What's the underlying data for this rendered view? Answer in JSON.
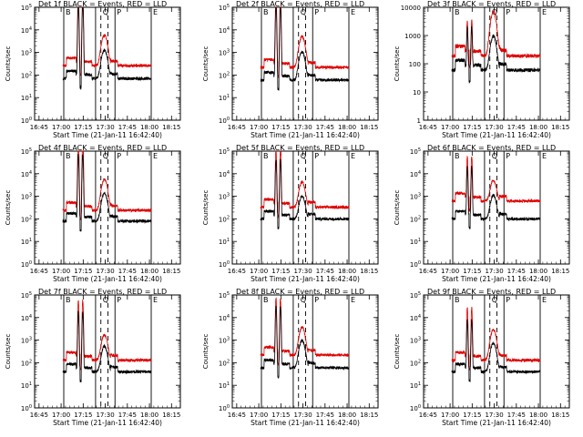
{
  "figure": {
    "x_tick_labels": [
      "16:45",
      "17:00",
      "17:15",
      "17:30",
      "17:45",
      "18:00",
      "18:15"
    ],
    "xlabel": "Start Time (21-Jan-11 16:42:40)",
    "ylabel": "Counts/sec",
    "region_labels": [
      "B",
      "Q",
      "P",
      "E"
    ],
    "colors": {
      "events": "#000000",
      "lld": "#e00000"
    }
  },
  "chart_data": [
    {
      "type": "line",
      "title": "Det 1f BLACK = Events, RED = LLD",
      "ylabel": "Counts/sec",
      "xlabel": "Start Time (21-Jan-11 16:42:40)",
      "yscale": "log",
      "ylim": [
        1,
        100000
      ],
      "y_tick_labels": [
        "10^0",
        "10^1",
        "10^2",
        "10^3",
        "10^4",
        "10^5"
      ],
      "x": [
        16.75,
        17.0,
        17.25,
        17.5,
        17.75,
        18.0,
        18.25
      ],
      "x_tick_labels": [
        "16:45",
        "17:00",
        "17:15",
        "17:30",
        "17:45",
        "18:00",
        "18:15"
      ],
      "vlines_solid": [
        17.03,
        17.39,
        17.61,
        18.02
      ],
      "vlines_dashed": [
        17.45,
        17.53
      ],
      "series": [
        {
          "name": "BLACK = Events",
          "color": "#000000",
          "base": 70,
          "pk1": 130000,
          "pk2": 130000,
          "pk3": 1200
        },
        {
          "name": "RED = LLD",
          "color": "#e00000",
          "base": 260,
          "pk1": 260000,
          "pk2": 260000,
          "pk3": 5500
        }
      ]
    },
    {
      "type": "line",
      "title": "Det 2f BLACK = Events, RED = LLD",
      "ylabel": "Counts/sec",
      "xlabel": "Start Time (21-Jan-11 16:42:40)",
      "yscale": "log",
      "ylim": [
        1,
        100000
      ],
      "y_tick_labels": [
        "10^0",
        "10^1",
        "10^2",
        "10^3",
        "10^4",
        "10^5"
      ],
      "x": [
        16.75,
        17.0,
        17.25,
        17.5,
        17.75,
        18.0,
        18.25
      ],
      "x_tick_labels": [
        "16:45",
        "17:00",
        "17:15",
        "17:30",
        "17:45",
        "18:00",
        "18:15"
      ],
      "vlines_solid": [
        17.03,
        17.39,
        17.61,
        18.02
      ],
      "vlines_dashed": [
        17.45,
        17.53
      ],
      "series": [
        {
          "name": "BLACK = Events",
          "color": "#000000",
          "base": 60,
          "pk1": 110000,
          "pk2": 110000,
          "pk3": 1000
        },
        {
          "name": "RED = LLD",
          "color": "#e00000",
          "base": 220,
          "pk1": 240000,
          "pk2": 240000,
          "pk3": 5000
        }
      ]
    },
    {
      "type": "line",
      "title": "Det 3f BLACK = Events, RED = LLD",
      "ylabel": "Counts/sec",
      "xlabel": "Start Time (21-Jan-11 16:42:40)",
      "yscale": "log",
      "ylim": [
        1,
        10000
      ],
      "y_tick_labels": [
        "1",
        "10",
        "100",
        "1000",
        "10000"
      ],
      "x": [
        16.75,
        17.0,
        17.25,
        17.5,
        17.75,
        18.0,
        18.25
      ],
      "x_tick_labels": [
        "16:45",
        "17:00",
        "17:15",
        "17:30",
        "17:45",
        "18:00",
        "18:15"
      ],
      "vlines_solid": [
        17.03,
        17.39,
        17.61,
        18.02
      ],
      "vlines_dashed": [
        17.45,
        17.53
      ],
      "series": [
        {
          "name": "BLACK = Events",
          "color": "#000000",
          "base": 60,
          "pk1": 1900,
          "pk2": 2100,
          "pk3": 900
        },
        {
          "name": "RED = LLD",
          "color": "#e00000",
          "base": 190,
          "pk1": 3000,
          "pk2": 3500,
          "pk3": 6500
        }
      ]
    },
    {
      "type": "line",
      "title": "Det 4f BLACK = Events, RED = LLD",
      "ylabel": "Counts/sec",
      "xlabel": "Start Time (21-Jan-11 16:42:40)",
      "yscale": "log",
      "ylim": [
        1,
        100000
      ],
      "y_tick_labels": [
        "10^0",
        "10^1",
        "10^2",
        "10^3",
        "10^4",
        "10^5"
      ],
      "x": [
        16.75,
        17.0,
        17.25,
        17.5,
        17.75,
        18.0,
        18.25
      ],
      "x_tick_labels": [
        "16:45",
        "17:00",
        "17:15",
        "17:30",
        "17:45",
        "18:00",
        "18:15"
      ],
      "vlines_solid": [
        17.03,
        17.39,
        17.61,
        18.02
      ],
      "vlines_dashed": [
        17.45,
        17.53
      ],
      "series": [
        {
          "name": "BLACK = Events",
          "color": "#000000",
          "base": 80,
          "pk1": 70000,
          "pk2": 70000,
          "pk3": 1300
        },
        {
          "name": "RED = LLD",
          "color": "#e00000",
          "base": 240,
          "pk1": 300000,
          "pk2": 300000,
          "pk3": 5500
        }
      ]
    },
    {
      "type": "line",
      "title": "Det 5f BLACK = Events, RED = LLD",
      "ylabel": "Counts/sec",
      "xlabel": "Start Time (21-Jan-11 16:42:40)",
      "yscale": "log",
      "ylim": [
        1,
        100000
      ],
      "y_tick_labels": [
        "10^0",
        "10^1",
        "10^2",
        "10^3",
        "10^4",
        "10^5"
      ],
      "x": [
        16.75,
        17.0,
        17.25,
        17.5,
        17.75,
        18.0,
        18.25
      ],
      "x_tick_labels": [
        "16:45",
        "17:00",
        "17:15",
        "17:30",
        "17:45",
        "18:00",
        "18:15"
      ],
      "vlines_solid": [
        17.03,
        17.39,
        17.61,
        18.02
      ],
      "vlines_dashed": [
        17.45,
        17.53
      ],
      "series": [
        {
          "name": "BLACK = Events",
          "color": "#000000",
          "base": 100,
          "pk1": 40000,
          "pk2": 40000,
          "pk3": 900
        },
        {
          "name": "RED = LLD",
          "color": "#e00000",
          "base": 330,
          "pk1": 120000,
          "pk2": 120000,
          "pk3": 4000
        }
      ]
    },
    {
      "type": "line",
      "title": "Det 6f BLACK = Events, RED = LLD",
      "ylabel": "Counts/sec",
      "xlabel": "Start Time (21-Jan-11 16:42:40)",
      "yscale": "log",
      "ylim": [
        1,
        100000
      ],
      "y_tick_labels": [
        "10^0",
        "10^1",
        "10^2",
        "10^3",
        "10^4",
        "10^5"
      ],
      "x": [
        16.75,
        17.0,
        17.25,
        17.5,
        17.75,
        18.0,
        18.25
      ],
      "x_tick_labels": [
        "16:45",
        "17:00",
        "17:15",
        "17:30",
        "17:45",
        "18:00",
        "18:15"
      ],
      "vlines_solid": [
        17.03,
        17.39,
        17.61,
        18.02
      ],
      "vlines_dashed": [
        17.45,
        17.53
      ],
      "series": [
        {
          "name": "BLACK = Events",
          "color": "#000000",
          "base": 100,
          "pk1": 20000,
          "pk2": 20000,
          "pk3": 1000
        },
        {
          "name": "RED = LLD",
          "color": "#e00000",
          "base": 620,
          "pk1": 60000,
          "pk2": 60000,
          "pk3": 4500
        }
      ]
    },
    {
      "type": "line",
      "title": "Det 7f BLACK = Events, RED = LLD",
      "ylabel": "Counts/sec",
      "xlabel": "Start Time (21-Jan-11 16:42:40)",
      "yscale": "log",
      "ylim": [
        1,
        100000
      ],
      "y_tick_labels": [
        "10^0",
        "10^1",
        "10^2",
        "10^3",
        "10^4",
        "10^5"
      ],
      "x": [
        16.75,
        17.0,
        17.25,
        17.5,
        17.75,
        18.0,
        18.25
      ],
      "x_tick_labels": [
        "16:45",
        "17:00",
        "17:15",
        "17:30",
        "17:45",
        "18:00",
        "18:15"
      ],
      "vlines_solid": [
        17.03,
        17.39,
        17.61,
        18.02
      ],
      "vlines_dashed": [
        17.45,
        17.53
      ],
      "series": [
        {
          "name": "BLACK = Events",
          "color": "#000000",
          "base": 40,
          "pk1": 18000,
          "pk2": 18000,
          "pk3": 500
        },
        {
          "name": "RED = LLD",
          "color": "#e00000",
          "base": 130,
          "pk1": 60000,
          "pk2": 60000,
          "pk3": 1600
        }
      ]
    },
    {
      "type": "line",
      "title": "Det 8f BLACK = Events, RED = LLD",
      "ylabel": "Counts/sec",
      "xlabel": "Start Time (21-Jan-11 16:42:40)",
      "yscale": "log",
      "ylim": [
        1,
        100000
      ],
      "y_tick_labels": [
        "10^0",
        "10^1",
        "10^2",
        "10^3",
        "10^4",
        "10^5"
      ],
      "x": [
        16.75,
        17.0,
        17.25,
        17.5,
        17.75,
        18.0,
        18.25
      ],
      "x_tick_labels": [
        "16:45",
        "17:00",
        "17:15",
        "17:30",
        "17:45",
        "18:00",
        "18:15"
      ],
      "vlines_solid": [
        17.03,
        17.39,
        17.61,
        18.02
      ],
      "vlines_dashed": [
        17.45,
        17.53
      ],
      "series": [
        {
          "name": "BLACK = Events",
          "color": "#000000",
          "base": 60,
          "pk1": 30000,
          "pk2": 30000,
          "pk3": 900
        },
        {
          "name": "RED = LLD",
          "color": "#e00000",
          "base": 220,
          "pk1": 70000,
          "pk2": 70000,
          "pk3": 3500
        }
      ]
    },
    {
      "type": "line",
      "title": "Det 9f BLACK = Events, RED = LLD",
      "ylabel": "Counts/sec",
      "xlabel": "Start Time (21-Jan-11 16:42:40)",
      "yscale": "log",
      "ylim": [
        1,
        100000
      ],
      "y_tick_labels": [
        "10^0",
        "10^1",
        "10^2",
        "10^3",
        "10^4",
        "10^5"
      ],
      "x": [
        16.75,
        17.0,
        17.25,
        17.5,
        17.75,
        18.0,
        18.25
      ],
      "x_tick_labels": [
        "16:45",
        "17:00",
        "17:15",
        "17:30",
        "17:45",
        "18:00",
        "18:15"
      ],
      "vlines_solid": [
        17.03,
        17.39,
        17.61,
        18.02
      ],
      "vlines_dashed": [
        17.45,
        17.53
      ],
      "series": [
        {
          "name": "BLACK = Events",
          "color": "#000000",
          "base": 40,
          "pk1": 8000,
          "pk2": 8000,
          "pk3": 700
        },
        {
          "name": "RED = LLD",
          "color": "#e00000",
          "base": 130,
          "pk1": 28000,
          "pk2": 28000,
          "pk3": 2800
        }
      ]
    }
  ]
}
